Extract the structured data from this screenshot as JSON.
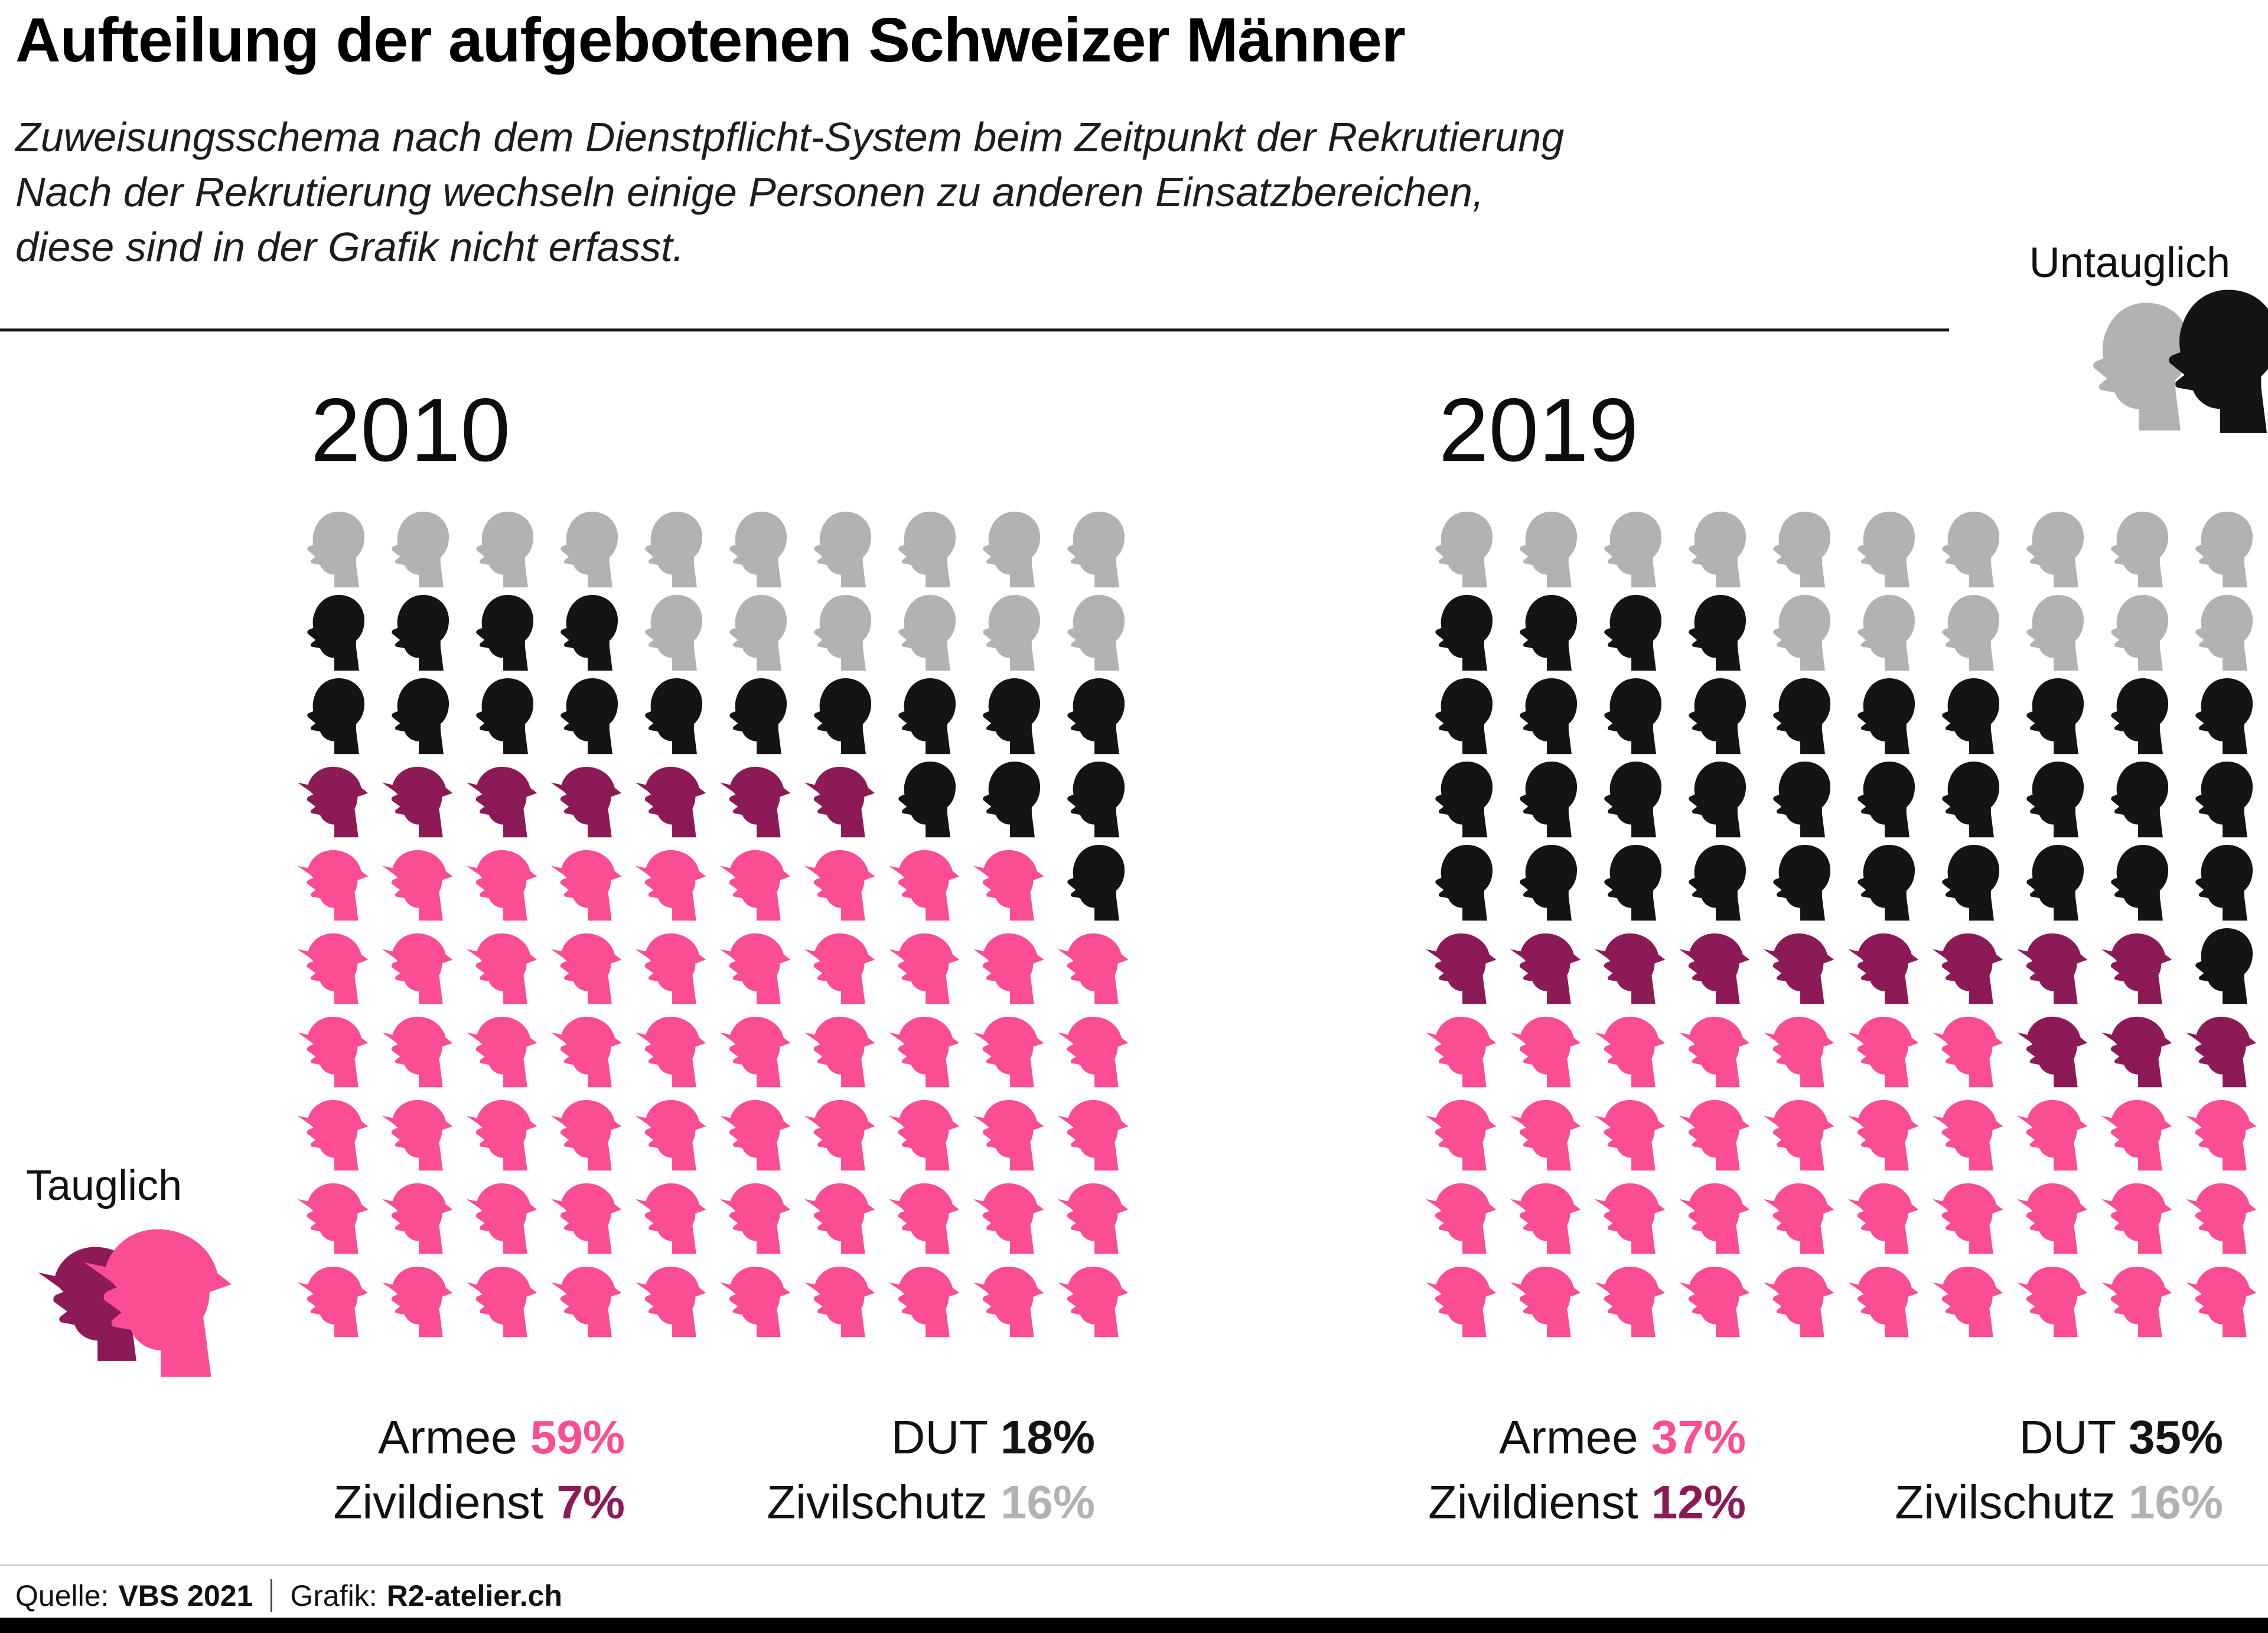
{
  "header": {
    "title": "Aufteilung der aufgebotenen Schweizer Männer",
    "subtitle_lines": [
      "Zuweisungsschema nach dem Dienstpflicht-System beim Zeitpunkt der Rekrutierung",
      "Nach der Rekrutierung wechseln einige Personen zu anderen Einsatzbereichen,",
      "diese sind in der Grafik nicht erfasst."
    ]
  },
  "legend": {
    "tauglich_label": "Tauglich",
    "untauglich_label": "Untauglich"
  },
  "colors": {
    "armee": "#fb4d93",
    "zivildienst": "#8c1a56",
    "dut": "#141414",
    "zivilschutz": "#b3b2b2"
  },
  "chart_data": {
    "type": "pictogram-waffle",
    "title": "Aufteilung der aufgebotenen Schweizer Männer",
    "grid": {
      "columns": 10,
      "rows": 10,
      "unit_percent": 1
    },
    "cell_types": {
      "G": {
        "category": "Zivilschutz",
        "color": "zivilschutz",
        "icon": "head-icon"
      },
      "B": {
        "category": "DUT",
        "color": "dut",
        "icon": "head-icon"
      },
      "M": {
        "category": "Zivildienst",
        "color": "zivildienst",
        "icon": "helmet-head-icon"
      },
      "P": {
        "category": "Armee",
        "color": "armee",
        "icon": "helmet-head-icon"
      }
    },
    "charts": [
      {
        "year": "2010",
        "values": {
          "Armee": 59,
          "Zivildienst": 7,
          "DUT": 18,
          "Zivilschutz": 16
        },
        "rows": [
          "GGGGGGGGGG",
          "BBBBGGGGGG",
          "BBBBBBBBBB",
          "MMMMMMMBBB",
          "PPPPPPPPPB",
          "PPPPPPPPPP",
          "PPPPPPPPPP",
          "PPPPPPPPPP",
          "PPPPPPPPPP",
          "PPPPPPPPPP"
        ],
        "stats": [
          [
            {
              "label": "Armee",
              "value": "59%",
              "color": "armee"
            },
            {
              "label": "Zivildienst",
              "value": "7%",
              "color": "zivildienst"
            }
          ],
          [
            {
              "label": "DUT",
              "value": "18%",
              "color": "dut"
            },
            {
              "label": "Zivilschutz",
              "value": "16%",
              "color": "zivilschutz"
            }
          ]
        ]
      },
      {
        "year": "2019",
        "values": {
          "Armee": 37,
          "Zivildienst": 12,
          "DUT": 35,
          "Zivilschutz": 16
        },
        "rows": [
          "GGGGGGGGGG",
          "BBBBGGGGGG",
          "BBBBBBBBBB",
          "BBBBBBBBBB",
          "BBBBBBBBBB",
          "MMMMMMMMMB",
          "PPPPPPPMMM",
          "PPPPPPPPPP",
          "PPPPPPPPPP",
          "PPPPPPPPPP"
        ],
        "stats": [
          [
            {
              "label": "Armee",
              "value": "37%",
              "color": "armee"
            },
            {
              "label": "Zivildienst",
              "value": "12%",
              "color": "zivildienst"
            }
          ],
          [
            {
              "label": "DUT",
              "value": "35%",
              "color": "dut"
            },
            {
              "label": "Zivilschutz",
              "value": "16%",
              "color": "zivilschutz"
            }
          ]
        ]
      }
    ]
  },
  "footer": {
    "source_label": "Quelle:",
    "source_value": "VBS 2021",
    "credit_label": "Grafik:",
    "credit_value": "R2-atelier.ch"
  }
}
